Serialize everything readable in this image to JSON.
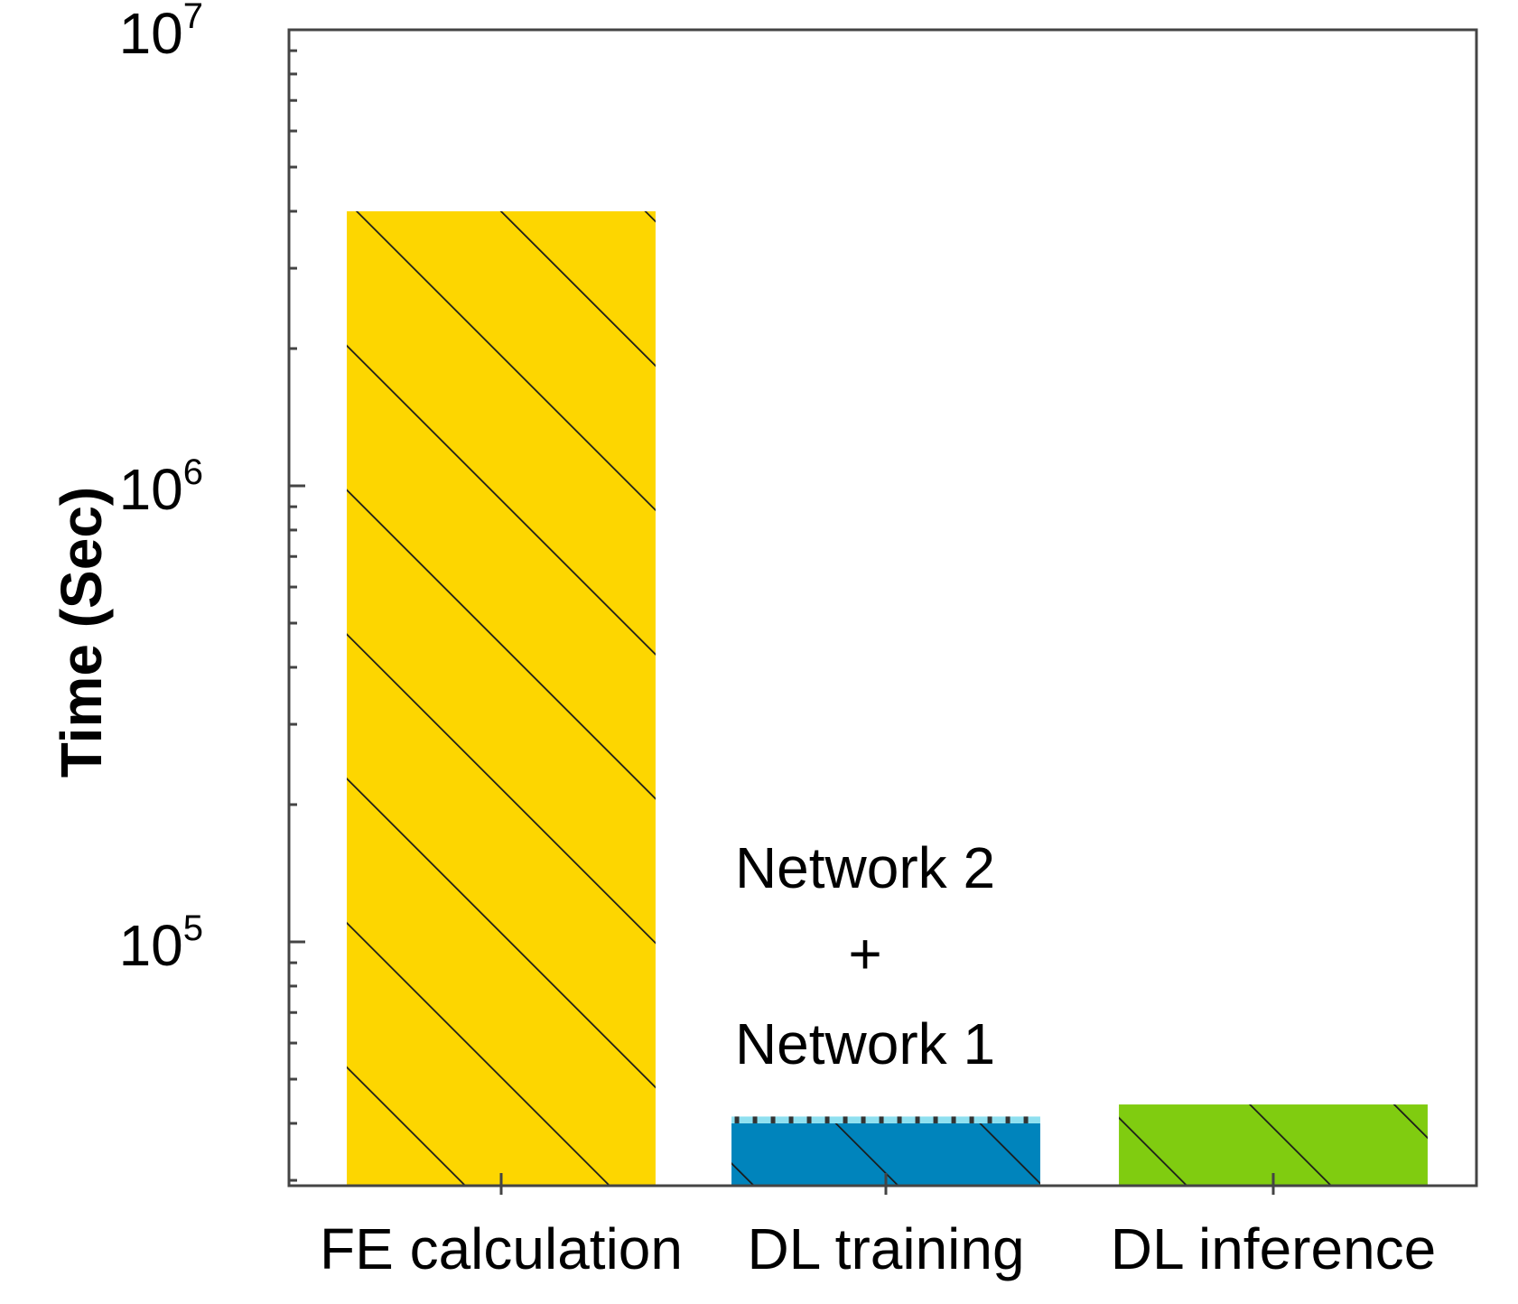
{
  "chart_data": {
    "type": "bar",
    "title": "",
    "xlabel": "",
    "ylabel": "Time (Sec)",
    "yscale": "log",
    "ylim": [
      30000,
      10000000
    ],
    "yticks": [
      {
        "value": 100000,
        "base": "10",
        "exp": "5"
      },
      {
        "value": 1000000,
        "base": "10",
        "exp": "6"
      },
      {
        "value": 10000000,
        "base": "10",
        "exp": "7"
      }
    ],
    "grid": false,
    "categories": [
      "FE calculation",
      "DL training",
      "DL inference"
    ],
    "bars": [
      {
        "category": "FE calculation",
        "segments": [
          {
            "value": 4000000,
            "color": "#FDD600",
            "hatch": "diagonal"
          }
        ]
      },
      {
        "category": "DL training",
        "segments": [
          {
            "name": "Network 1",
            "value": 40000,
            "color": "#0084BC",
            "hatch": "diagonal"
          },
          {
            "name": "Network 2",
            "value": 1400,
            "color": "#8FE0F0",
            "hatch": "dashed"
          }
        ]
      },
      {
        "category": "DL inference",
        "segments": [
          {
            "value": 44000,
            "color": "#80CC10",
            "hatch": "diagonal"
          }
        ]
      }
    ],
    "annotation": {
      "line1": "Network 2",
      "line2": "+",
      "line3": "Network 1"
    }
  }
}
